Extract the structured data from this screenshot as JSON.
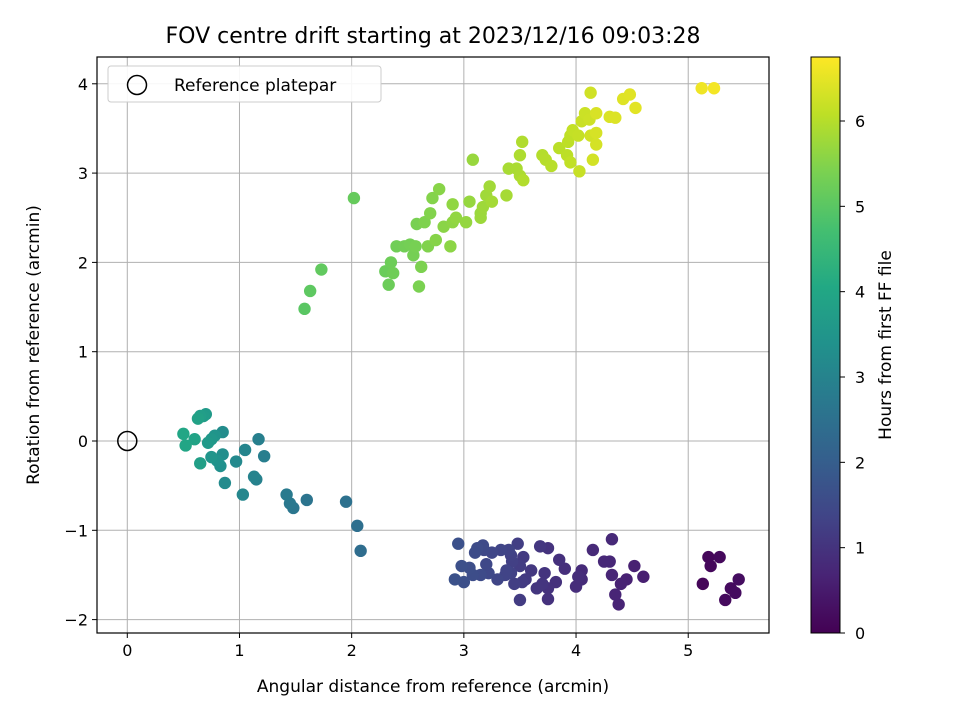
{
  "chart_data": {
    "type": "scatter",
    "title": "FOV centre drift starting at 2023/12/16 09:03:28",
    "xlabel": "Angular distance from reference (arcmin)",
    "ylabel": "Rotation from reference (arcmin)",
    "xlim": [
      -0.27,
      5.72
    ],
    "ylim": [
      -2.15,
      4.3
    ],
    "x_ticks": [
      "0",
      "1",
      "2",
      "3",
      "4",
      "5"
    ],
    "y_ticks": [
      "−2",
      "−1",
      "0",
      "1",
      "2",
      "3",
      "4"
    ],
    "grid": true,
    "legend": {
      "placement": "top-left",
      "entries": [
        "Reference platepar"
      ]
    },
    "reference_point": {
      "x": 0,
      "y": 0
    },
    "colorbar": {
      "label": "Hours from first FF file",
      "range": [
        0,
        6.75
      ],
      "ticks": [
        "0",
        "1",
        "2",
        "3",
        "4",
        "5",
        "6"
      ],
      "colormap": "viridis"
    },
    "points": [
      [
        5.13,
        -1.6,
        0.1
      ],
      [
        5.18,
        -1.3,
        0.12
      ],
      [
        5.2,
        -1.4,
        0.14
      ],
      [
        5.28,
        -1.3,
        0.16
      ],
      [
        5.33,
        -1.78,
        0.18
      ],
      [
        5.38,
        -1.65,
        0.2
      ],
      [
        5.42,
        -1.7,
        0.22
      ],
      [
        5.45,
        -1.55,
        0.24
      ],
      [
        4.6,
        -1.52,
        0.6
      ],
      [
        4.52,
        -1.4,
        0.62
      ],
      [
        4.45,
        -1.55,
        0.64
      ],
      [
        4.4,
        -1.6,
        0.66
      ],
      [
        4.38,
        -1.83,
        0.68
      ],
      [
        4.35,
        -1.72,
        0.7
      ],
      [
        4.32,
        -1.5,
        0.72
      ],
      [
        4.3,
        -1.35,
        0.74
      ],
      [
        4.25,
        -1.35,
        0.76
      ],
      [
        4.32,
        -1.1,
        0.78
      ],
      [
        4.15,
        -1.22,
        0.8
      ],
      [
        4.05,
        -1.45,
        0.82
      ],
      [
        4.05,
        -1.55,
        0.84
      ],
      [
        4.0,
        -1.63,
        0.86
      ],
      [
        4.02,
        -1.52,
        0.88
      ],
      [
        3.9,
        -1.43,
        0.9
      ],
      [
        3.85,
        -1.33,
        0.92
      ],
      [
        3.82,
        -1.58,
        0.94
      ],
      [
        3.75,
        -1.77,
        0.96
      ],
      [
        3.75,
        -1.65,
        0.98
      ],
      [
        3.75,
        -1.2,
        1.0
      ],
      [
        3.72,
        -1.48,
        1.02
      ],
      [
        3.7,
        -1.6,
        1.04
      ],
      [
        3.65,
        -1.65,
        1.06
      ],
      [
        3.68,
        -1.18,
        1.08
      ],
      [
        3.6,
        -1.45,
        1.1
      ],
      [
        3.55,
        -1.55,
        1.12
      ],
      [
        3.53,
        -1.3,
        1.14
      ],
      [
        3.52,
        -1.58,
        1.16
      ],
      [
        3.5,
        -1.78,
        1.18
      ],
      [
        3.5,
        -1.4,
        1.2
      ],
      [
        3.48,
        -1.15,
        1.22
      ],
      [
        3.45,
        -1.6,
        1.24
      ],
      [
        3.43,
        -1.35,
        1.26
      ],
      [
        3.42,
        -1.28,
        1.28
      ],
      [
        3.42,
        -1.48,
        1.3
      ],
      [
        3.4,
        -1.22,
        1.32
      ],
      [
        3.38,
        -1.45,
        1.34
      ],
      [
        3.37,
        -1.5,
        1.36
      ],
      [
        3.33,
        -1.22,
        1.38
      ],
      [
        3.3,
        -1.55,
        1.4
      ],
      [
        3.25,
        -1.25,
        1.42
      ],
      [
        3.22,
        -1.48,
        1.44
      ],
      [
        3.2,
        -1.38,
        1.46
      ],
      [
        3.18,
        -1.22,
        1.48
      ],
      [
        3.17,
        -1.17,
        1.5
      ],
      [
        3.15,
        -1.5,
        1.52
      ],
      [
        3.12,
        -1.2,
        1.54
      ],
      [
        3.1,
        -1.25,
        1.56
      ],
      [
        3.08,
        -1.5,
        1.58
      ],
      [
        3.05,
        -1.42,
        1.6
      ],
      [
        3.0,
        -1.58,
        1.62
      ],
      [
        2.98,
        -1.4,
        1.64
      ],
      [
        2.95,
        -1.15,
        1.66
      ],
      [
        2.92,
        -1.55,
        1.68
      ],
      [
        2.08,
        -1.23,
        2.4
      ],
      [
        2.05,
        -0.95,
        2.45
      ],
      [
        1.95,
        -0.68,
        2.5
      ],
      [
        1.6,
        -0.66,
        2.6
      ],
      [
        1.48,
        -0.75,
        2.65
      ],
      [
        1.45,
        -0.7,
        2.7
      ],
      [
        1.42,
        -0.6,
        2.75
      ],
      [
        1.22,
        -0.17,
        2.85
      ],
      [
        1.17,
        0.02,
        2.9
      ],
      [
        1.15,
        -0.43,
        2.95
      ],
      [
        1.13,
        -0.4,
        3.0
      ],
      [
        1.05,
        -0.1,
        3.05
      ],
      [
        1.03,
        -0.6,
        3.1
      ],
      [
        0.97,
        -0.23,
        3.15
      ],
      [
        0.87,
        -0.47,
        3.2
      ],
      [
        0.85,
        0.1,
        3.25
      ],
      [
        0.85,
        -0.15,
        3.3
      ],
      [
        0.83,
        -0.28,
        3.35
      ],
      [
        0.8,
        -0.22,
        3.4
      ],
      [
        0.78,
        0.06,
        3.45
      ],
      [
        0.75,
        -0.18,
        3.5
      ],
      [
        0.75,
        0.02,
        3.55
      ],
      [
        0.72,
        -0.02,
        3.6
      ],
      [
        0.7,
        0.3,
        3.65
      ],
      [
        0.68,
        0.28,
        3.7
      ],
      [
        0.65,
        0.28,
        3.75
      ],
      [
        0.65,
        -0.25,
        3.8
      ],
      [
        0.63,
        0.25,
        3.85
      ],
      [
        0.6,
        0.02,
        3.9
      ],
      [
        0.52,
        -0.05,
        3.95
      ],
      [
        0.5,
        0.08,
        4.0
      ],
      [
        1.58,
        1.48,
        5.0
      ],
      [
        1.63,
        1.68,
        5.05
      ],
      [
        1.73,
        1.92,
        5.1
      ],
      [
        2.02,
        2.72,
        5.15
      ],
      [
        2.3,
        1.9,
        5.2
      ],
      [
        2.33,
        1.75,
        5.22
      ],
      [
        2.35,
        2.0,
        5.24
      ],
      [
        2.37,
        1.88,
        5.26
      ],
      [
        2.4,
        2.18,
        5.28
      ],
      [
        2.47,
        2.18,
        5.3
      ],
      [
        2.52,
        2.2,
        5.32
      ],
      [
        2.55,
        2.08,
        5.34
      ],
      [
        2.57,
        2.18,
        5.36
      ],
      [
        2.58,
        2.43,
        5.38
      ],
      [
        2.6,
        1.73,
        5.4
      ],
      [
        2.62,
        1.95,
        5.42
      ],
      [
        2.65,
        2.45,
        5.44
      ],
      [
        2.68,
        2.18,
        5.46
      ],
      [
        2.7,
        2.55,
        5.48
      ],
      [
        2.72,
        2.72,
        5.5
      ],
      [
        2.75,
        2.25,
        5.52
      ],
      [
        2.78,
        2.82,
        5.54
      ],
      [
        2.82,
        2.4,
        5.56
      ],
      [
        2.88,
        2.18,
        5.58
      ],
      [
        2.9,
        2.45,
        5.6
      ],
      [
        2.9,
        2.65,
        5.62
      ],
      [
        2.93,
        2.5,
        5.64
      ],
      [
        3.02,
        2.45,
        5.66
      ],
      [
        3.05,
        2.68,
        5.68
      ],
      [
        3.08,
        3.15,
        5.7
      ],
      [
        3.15,
        2.55,
        5.72
      ],
      [
        3.15,
        2.5,
        5.74
      ],
      [
        3.17,
        2.62,
        5.76
      ],
      [
        3.2,
        2.75,
        5.78
      ],
      [
        3.23,
        2.85,
        5.8
      ],
      [
        3.25,
        2.68,
        5.82
      ],
      [
        3.38,
        2.75,
        5.84
      ],
      [
        3.4,
        3.05,
        5.86
      ],
      [
        3.47,
        3.05,
        5.88
      ],
      [
        3.5,
        2.97,
        5.9
      ],
      [
        3.5,
        3.2,
        5.92
      ],
      [
        3.52,
        3.35,
        5.94
      ],
      [
        3.53,
        2.92,
        5.96
      ],
      [
        3.7,
        3.2,
        5.98
      ],
      [
        3.73,
        3.15,
        6.0
      ],
      [
        3.78,
        3.08,
        6.02
      ],
      [
        3.85,
        3.28,
        6.04
      ],
      [
        3.92,
        3.2,
        6.06
      ],
      [
        3.93,
        3.35,
        6.08
      ],
      [
        3.95,
        3.42,
        6.1
      ],
      [
        3.95,
        3.12,
        6.12
      ],
      [
        3.97,
        3.48,
        6.14
      ],
      [
        4.02,
        3.42,
        6.16
      ],
      [
        4.03,
        3.02,
        6.18
      ],
      [
        4.05,
        3.58,
        6.2
      ],
      [
        4.08,
        3.67,
        6.22
      ],
      [
        4.12,
        3.6,
        6.24
      ],
      [
        4.13,
        3.9,
        6.26
      ],
      [
        4.13,
        3.42,
        6.28
      ],
      [
        4.15,
        3.15,
        6.3
      ],
      [
        4.18,
        3.32,
        6.32
      ],
      [
        4.18,
        3.45,
        6.34
      ],
      [
        4.18,
        3.67,
        6.36
      ],
      [
        4.3,
        3.63,
        6.38
      ],
      [
        4.35,
        3.62,
        6.4
      ],
      [
        4.42,
        3.83,
        6.42
      ],
      [
        4.48,
        3.88,
        6.44
      ],
      [
        4.53,
        3.73,
        6.46
      ],
      [
        5.12,
        3.95,
        6.6
      ],
      [
        5.23,
        3.95,
        6.65
      ]
    ]
  }
}
